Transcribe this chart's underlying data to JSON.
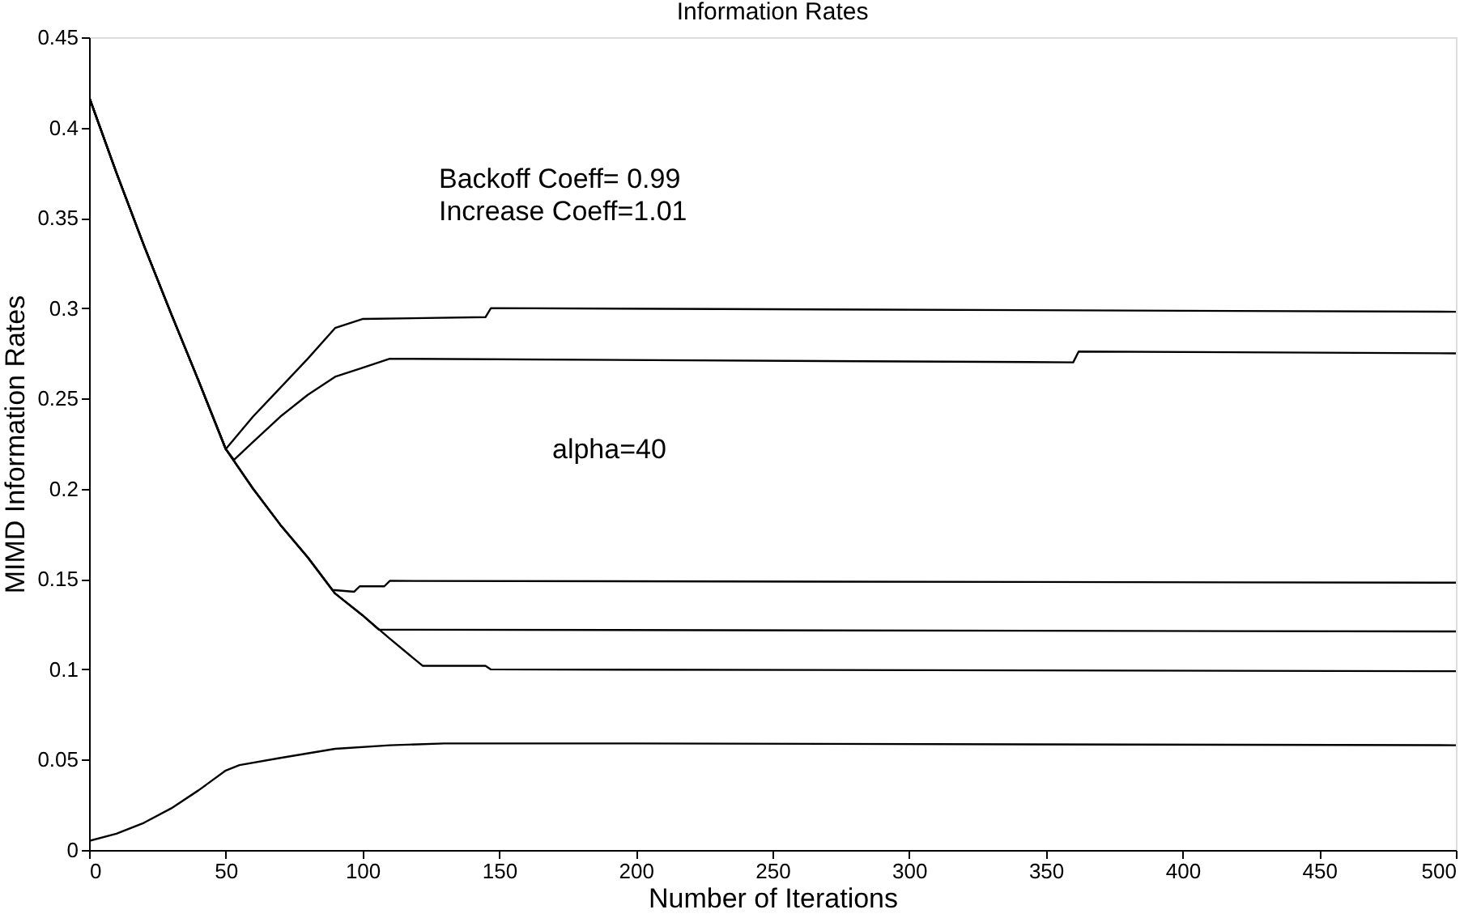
{
  "chart_data": {
    "type": "line",
    "title": "Information Rates",
    "xlabel": "Number of Iterations",
    "ylabel": "MIMD Information Rates",
    "annotations": [
      "Backoff Coeff= 0.99",
      "Increase Coeff=1.01",
      "alpha=40"
    ],
    "xlim": [
      0,
      500
    ],
    "xticks": [
      0,
      50,
      100,
      150,
      200,
      250,
      300,
      350,
      400,
      450,
      500
    ],
    "ylim": [
      0,
      0.45
    ],
    "yticks": [
      0,
      0.05,
      0.1,
      0.15,
      0.2,
      0.25,
      0.3,
      0.35,
      0.4,
      0.45
    ],
    "grid": false,
    "legend": false,
    "marker": "none",
    "line_style": "solid",
    "series": [
      {
        "color": "#000000",
        "x": [
          0,
          10,
          20,
          30,
          40,
          50,
          60,
          70,
          80,
          90,
          100,
          145,
          147,
          500
        ],
        "values": [
          0.417,
          0.375,
          0.335,
          0.297,
          0.26,
          0.222,
          0.24,
          0.256,
          0.272,
          0.289,
          0.294,
          0.295,
          0.3,
          0.298
        ]
      },
      {
        "color": "#000000",
        "x": [
          0,
          10,
          20,
          30,
          40,
          50,
          53,
          60,
          70,
          80,
          90,
          100,
          110,
          360,
          362,
          500
        ],
        "values": [
          0.417,
          0.375,
          0.335,
          0.297,
          0.26,
          0.222,
          0.216,
          0.226,
          0.24,
          0.252,
          0.262,
          0.267,
          0.272,
          0.27,
          0.276,
          0.275
        ]
      },
      {
        "color": "#000000",
        "x": [
          0,
          10,
          20,
          30,
          40,
          50,
          60,
          70,
          80,
          89,
          97,
          99,
          108,
          110,
          500
        ],
        "values": [
          0.417,
          0.375,
          0.335,
          0.297,
          0.26,
          0.222,
          0.2,
          0.18,
          0.162,
          0.144,
          0.143,
          0.146,
          0.146,
          0.149,
          0.148
        ]
      },
      {
        "color": "#000000",
        "x": [
          0,
          10,
          20,
          30,
          40,
          50,
          60,
          70,
          80,
          90,
          100,
          106,
          500
        ],
        "values": [
          0.417,
          0.375,
          0.335,
          0.297,
          0.26,
          0.222,
          0.2,
          0.18,
          0.162,
          0.142,
          0.13,
          0.122,
          0.121
        ]
      },
      {
        "color": "#000000",
        "x": [
          0,
          10,
          20,
          30,
          40,
          50,
          60,
          70,
          80,
          90,
          100,
          110,
          122,
          145,
          147,
          500
        ],
        "values": [
          0.417,
          0.375,
          0.335,
          0.297,
          0.26,
          0.222,
          0.2,
          0.18,
          0.162,
          0.142,
          0.13,
          0.117,
          0.102,
          0.102,
          0.1,
          0.099
        ]
      },
      {
        "color": "#000000",
        "x": [
          0,
          10,
          20,
          30,
          40,
          50,
          55,
          70,
          90,
          110,
          130,
          200,
          500
        ],
        "values": [
          0.005,
          0.009,
          0.015,
          0.023,
          0.033,
          0.044,
          0.047,
          0.051,
          0.056,
          0.058,
          0.059,
          0.059,
          0.058
        ]
      }
    ]
  }
}
